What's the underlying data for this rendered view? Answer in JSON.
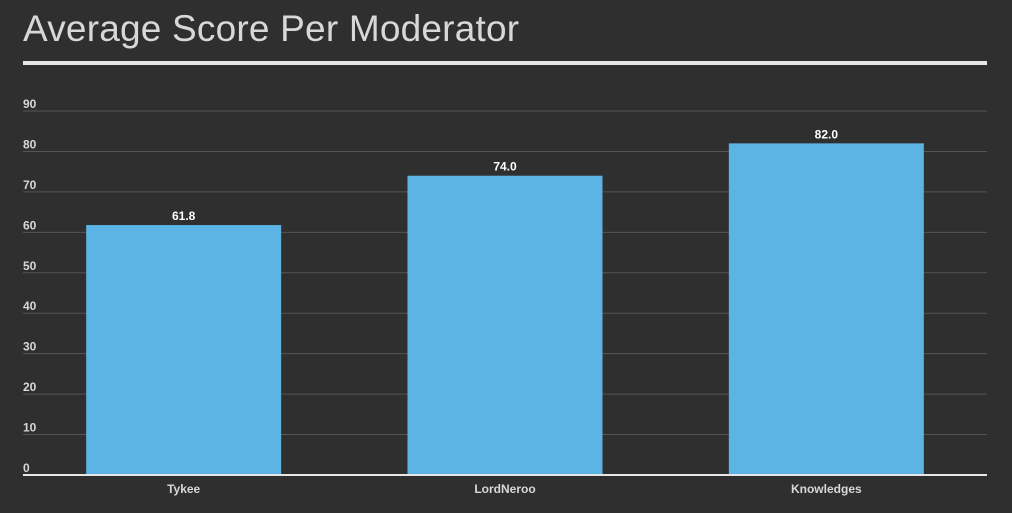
{
  "title": "Average Score Per Moderator",
  "colors": {
    "background": "#2f2f2f",
    "bar": "#5cb4e4",
    "grid": "#555555",
    "axis": "#e6e6e6",
    "text": "#d8d8d8",
    "data_label": "#ffffff"
  },
  "chart_data": {
    "type": "bar",
    "title": "Average Score Per Moderator",
    "categories": [
      "Tykee",
      "LordNeroo",
      "Knowledges"
    ],
    "values": [
      61.8,
      74.0,
      82.0
    ],
    "data_labels": [
      "61.8",
      "74.0",
      "82.0"
    ],
    "ylim": [
      0,
      90
    ],
    "yticks": [
      0,
      10,
      20,
      30,
      40,
      50,
      60,
      70,
      80,
      90
    ],
    "grid": true,
    "xlabel": "",
    "ylabel": ""
  }
}
